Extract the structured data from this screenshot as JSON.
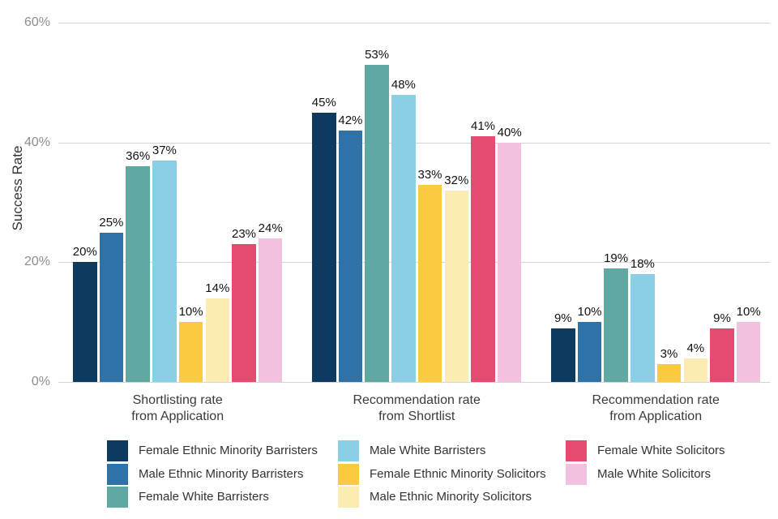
{
  "chart_data": {
    "type": "bar",
    "title": "",
    "xlabel": "",
    "ylabel": "Success Rate",
    "ylim": [
      0,
      60
    ],
    "yticks": [
      0,
      20,
      40,
      60
    ],
    "ytick_labels": [
      "0%",
      "20%",
      "40%",
      "60%"
    ],
    "grid": "horizontal-major-only",
    "legend_position": "bottom",
    "value_label_suffix": "%",
    "categories": [
      [
        "Shortlisting rate",
        "from Application"
      ],
      [
        "Recommendation rate",
        "from Shortlist"
      ],
      [
        "Recommendation rate",
        "from Application"
      ]
    ],
    "series": [
      {
        "name": "Female Ethnic Minority Barristers",
        "color": "#0d3a5e",
        "values": [
          20,
          45,
          9
        ]
      },
      {
        "name": "Male Ethnic Minority Barristers",
        "color": "#2e72a8",
        "values": [
          25,
          42,
          10
        ]
      },
      {
        "name": "Female White Barristers",
        "color": "#5fa9a2",
        "values": [
          36,
          53,
          19
        ]
      },
      {
        "name": "Male White Barristers",
        "color": "#8bcfe6",
        "values": [
          37,
          48,
          18
        ]
      },
      {
        "name": "Female Ethnic Minority Solicitors",
        "color": "#fcca40",
        "values": [
          10,
          33,
          3
        ]
      },
      {
        "name": "Male Ethnic Minority Solicitors",
        "color": "#fcecb4",
        "values": [
          14,
          32,
          4
        ]
      },
      {
        "name": "Female White Solicitors",
        "color": "#e54a70",
        "values": [
          23,
          41,
          9
        ]
      },
      {
        "name": "Male White Solicitors",
        "color": "#f2c1df",
        "values": [
          24,
          40,
          10
        ]
      }
    ]
  },
  "colors": {
    "background": "#ffffff",
    "gridline": "#d4d4d4",
    "ytick_text": "#8e8e8e",
    "axis_title_text": "#333333",
    "category_text": "#3a3a3a",
    "value_text": "#111111",
    "legend_text": "#333333"
  }
}
